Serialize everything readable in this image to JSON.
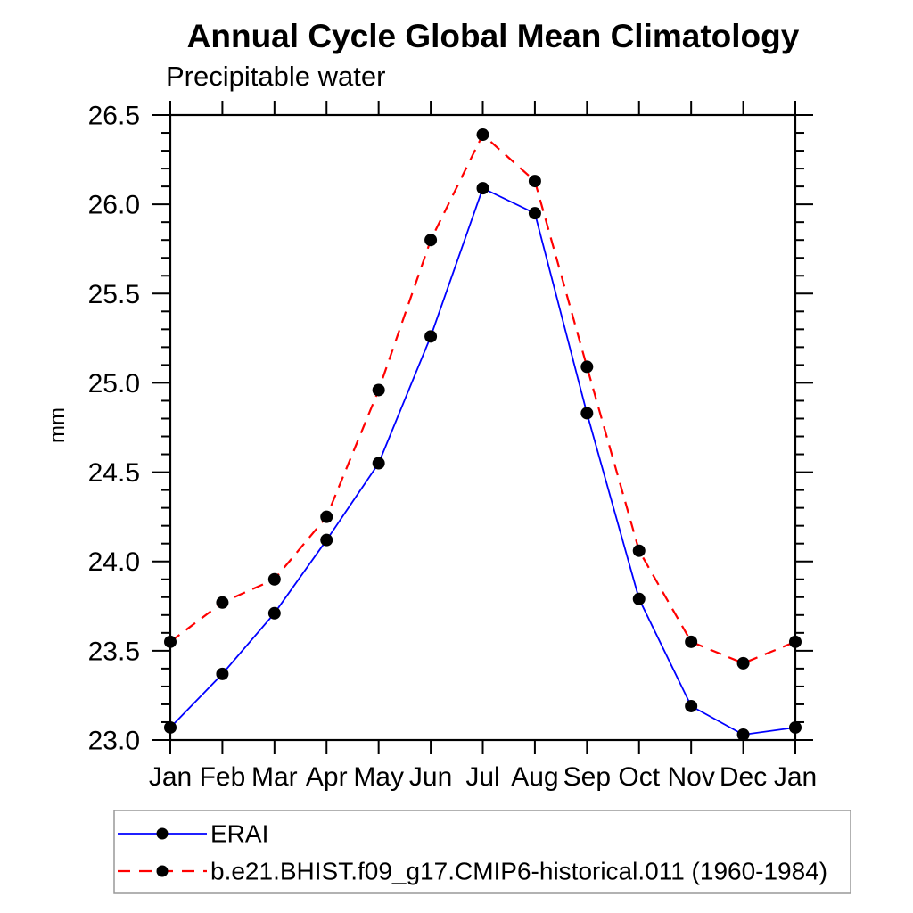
{
  "chart": {
    "title": "Annual Cycle Global Mean Climatology",
    "subtitle": "Precipitable water",
    "ylabel": "mm"
  },
  "chart_data": {
    "type": "line",
    "title": "Annual Cycle Global Mean Climatology",
    "subtitle": "Precipitable water",
    "xlabel": "",
    "ylabel": "mm",
    "categories": [
      "Jan",
      "Feb",
      "Mar",
      "Apr",
      "May",
      "Jun",
      "Jul",
      "Aug",
      "Sep",
      "Oct",
      "Nov",
      "Dec",
      "Jan"
    ],
    "ylim": [
      23.0,
      26.5
    ],
    "ytick_step": 0.5,
    "ytick_minor_step": 0.1,
    "ytick_labels": [
      "23.0",
      "23.5",
      "24.0",
      "24.5",
      "25.0",
      "25.5",
      "26.0",
      "26.5"
    ],
    "grid": false,
    "legend_position": "bottom-left-box",
    "axis_color": "#000000",
    "marker_color": "#000000",
    "legend_border_color": "#999999",
    "series": [
      {
        "name": "ERAI",
        "color": "#0000ff",
        "style": "solid",
        "marker": "circle",
        "values": [
          23.07,
          23.37,
          23.71,
          24.12,
          24.55,
          25.26,
          26.09,
          25.95,
          24.83,
          23.79,
          23.19,
          23.03,
          23.07
        ]
      },
      {
        "name": "b.e21.BHIST.f09_g17.CMIP6-historical.011 (1960-1984)",
        "color": "#ff0000",
        "style": "dashed",
        "marker": "circle",
        "values": [
          23.55,
          23.77,
          23.9,
          24.25,
          24.96,
          25.8,
          26.39,
          26.13,
          25.09,
          24.06,
          23.55,
          23.43,
          23.55
        ]
      }
    ]
  }
}
